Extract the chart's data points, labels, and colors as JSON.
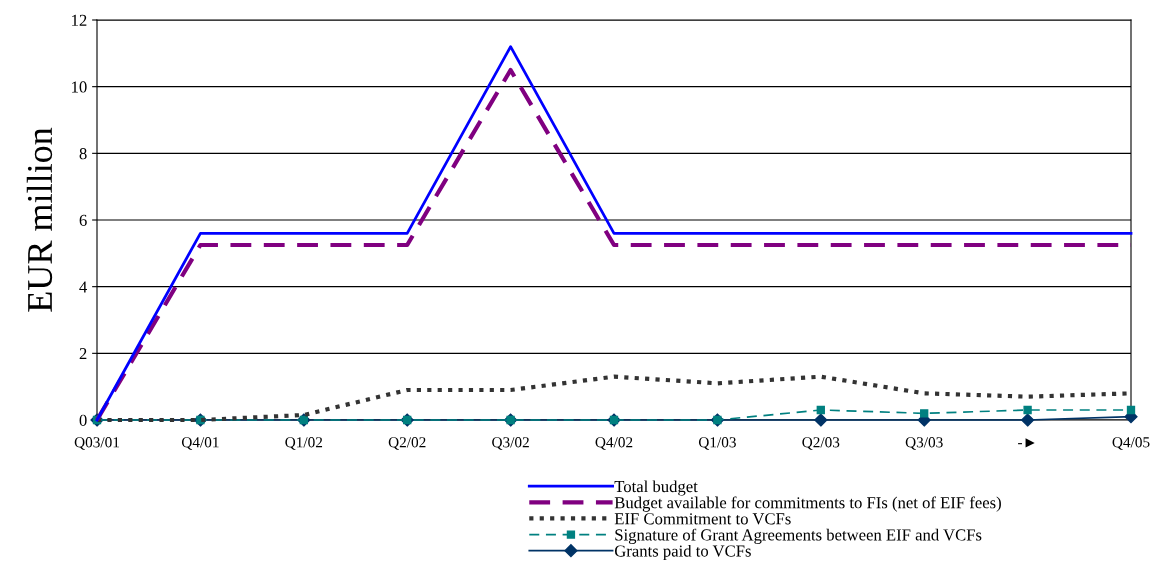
{
  "chart_data": {
    "type": "line",
    "ylabel": "EUR million",
    "categories": [
      "Q03/01",
      "Q4/01",
      "Q1/02",
      "Q2/02",
      "Q3/02",
      "Q4/02",
      "Q1/03",
      "Q2/03",
      "Q3/03",
      "-►",
      "Q4/05"
    ],
    "series": [
      {
        "name": "Total budget",
        "color": "#0000ff",
        "line_style": "solid",
        "marker": "none",
        "values": [
          0,
          5.6,
          5.6,
          5.6,
          11.2,
          5.6,
          5.6,
          5.6,
          5.6,
          5.6,
          5.6
        ]
      },
      {
        "name": "Budget available for commitments to FIs (net of EIF fees)",
        "color": "#800080",
        "line_style": "dashed",
        "marker": "none",
        "values": [
          0,
          5.25,
          5.25,
          5.25,
          10.5,
          5.25,
          5.25,
          5.25,
          5.25,
          5.25,
          5.25
        ]
      },
      {
        "name": "EIF Commitment to VCFs",
        "color": "#333333",
        "line_style": "dotted",
        "marker": "none",
        "values": [
          0,
          0,
          0.15,
          0.9,
          0.9,
          1.3,
          1.1,
          1.3,
          0.8,
          0.7,
          0.8
        ]
      },
      {
        "name": "Signature of Grant Agreements between EIF and VCFs",
        "color": "#008080",
        "line_style": "dashed",
        "marker": "square",
        "values": [
          0,
          0,
          0,
          0,
          0,
          0,
          0,
          0.3,
          0.2,
          0.3,
          0.3
        ]
      },
      {
        "name": "Grants paid to VCFs",
        "color": "#003366",
        "line_style": "solid",
        "marker": "diamond",
        "values": [
          0,
          0,
          0,
          0,
          0,
          0,
          0,
          0,
          0,
          0,
          0.1
        ]
      }
    ],
    "ylim": [
      0,
      12
    ],
    "yticks": [
      0,
      2,
      4,
      6,
      8,
      10,
      12
    ],
    "grid": "y",
    "legend": "bottom"
  }
}
